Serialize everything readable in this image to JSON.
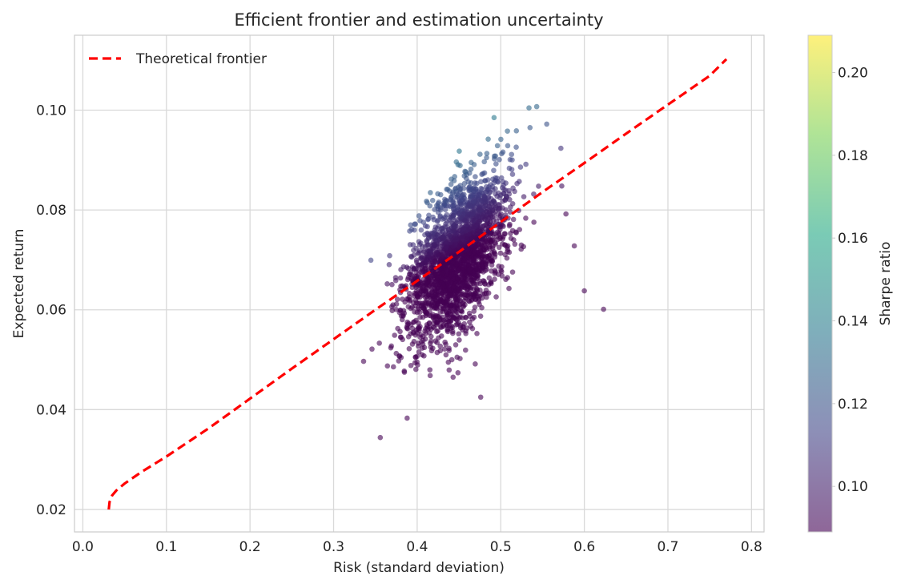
{
  "chart_data": {
    "type": "scatter",
    "title": "Efficient frontier and estimation uncertainty",
    "xlabel": "Risk (standard deviation)",
    "ylabel": "Expected return",
    "xlim": [
      -0.01,
      0.815
    ],
    "ylim": [
      0.0155,
      0.115
    ],
    "xticks": [
      "0.0",
      "0.1",
      "0.2",
      "0.3",
      "0.4",
      "0.5",
      "0.6",
      "0.7",
      "0.8"
    ],
    "yticks": [
      "0.02",
      "0.04",
      "0.06",
      "0.08",
      "0.10"
    ],
    "grid": true,
    "legend": {
      "position": "top-left",
      "entries": [
        "Theoretical frontier"
      ]
    },
    "series": [
      {
        "name": "Theoretical frontier",
        "kind": "line",
        "style": "dashed",
        "color": "#ff0000",
        "x": [
          0.031,
          0.032,
          0.035,
          0.04,
          0.05,
          0.07,
          0.1,
          0.15,
          0.2,
          0.25,
          0.3,
          0.35,
          0.4,
          0.45,
          0.5,
          0.55,
          0.6,
          0.65,
          0.7,
          0.75,
          0.77
        ],
        "y": [
          0.02,
          0.0215,
          0.0228,
          0.0238,
          0.0252,
          0.0275,
          0.0306,
          0.0362,
          0.0422,
          0.0482,
          0.0541,
          0.06,
          0.0658,
          0.0716,
          0.0776,
          0.0836,
          0.0894,
          0.0953,
          0.1011,
          0.1069,
          0.1102
        ]
      },
      {
        "kind": "scatter",
        "colorscale": "viridis",
        "sample_points": [
          {
            "x": 0.543,
            "y": 0.1007
          },
          {
            "x": 0.492,
            "y": 0.0985
          },
          {
            "x": 0.555,
            "y": 0.0972
          },
          {
            "x": 0.508,
            "y": 0.0958
          },
          {
            "x": 0.535,
            "y": 0.0965
          },
          {
            "x": 0.623,
            "y": 0.0601
          },
          {
            "x": 0.6,
            "y": 0.0638
          },
          {
            "x": 0.588,
            "y": 0.0728
          },
          {
            "x": 0.476,
            "y": 0.0425
          },
          {
            "x": 0.443,
            "y": 0.0465
          },
          {
            "x": 0.578,
            "y": 0.0792
          },
          {
            "x": 0.573,
            "y": 0.0848
          }
        ]
      }
    ],
    "colorbar": {
      "label": "Sharpe ratio",
      "range": [
        0.089,
        0.209
      ],
      "ticks": [
        "0.10",
        "0.12",
        "0.14",
        "0.16",
        "0.18",
        "0.20"
      ],
      "colors": [
        "#440154",
        "#414487",
        "#2a788e",
        "#22a884",
        "#7ad151",
        "#fde725"
      ]
    }
  }
}
